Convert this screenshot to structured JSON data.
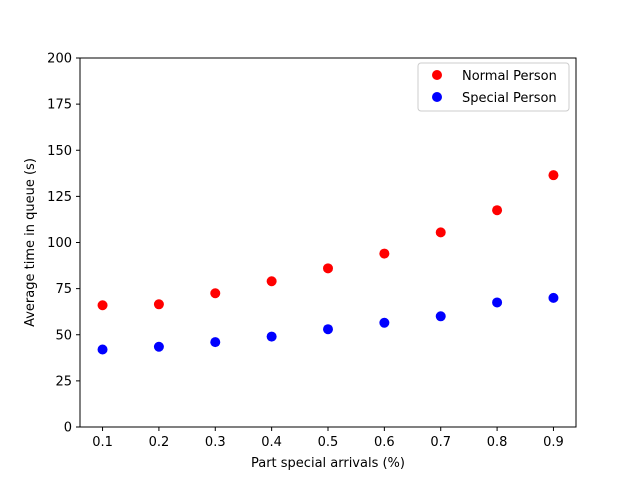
{
  "chart_data": {
    "type": "scatter",
    "xlabel": "Part special arrivals (%)",
    "ylabel": "Average time in queue (s)",
    "xlim": [
      0.06,
      0.94
    ],
    "ylim": [
      0,
      200
    ],
    "xticks": [
      0.1,
      0.2,
      0.3,
      0.4,
      0.5,
      0.6,
      0.7,
      0.8,
      0.9
    ],
    "yticks": [
      0,
      25,
      50,
      75,
      100,
      125,
      150,
      175,
      200
    ],
    "grid": false,
    "legend_position": "top-right",
    "series": [
      {
        "name": "Normal Person",
        "color": "#ff0000",
        "x": [
          0.1,
          0.2,
          0.3,
          0.4,
          0.5,
          0.6,
          0.7,
          0.8,
          0.9
        ],
        "y": [
          66,
          66.5,
          72.5,
          79,
          86,
          94,
          105.5,
          117.5,
          136.5
        ]
      },
      {
        "name": "Special Person",
        "color": "#0000ff",
        "x": [
          0.1,
          0.2,
          0.3,
          0.4,
          0.5,
          0.6,
          0.7,
          0.8,
          0.9
        ],
        "y": [
          42,
          43.5,
          46,
          49,
          53,
          56.5,
          60,
          67.5,
          70
        ]
      }
    ]
  }
}
